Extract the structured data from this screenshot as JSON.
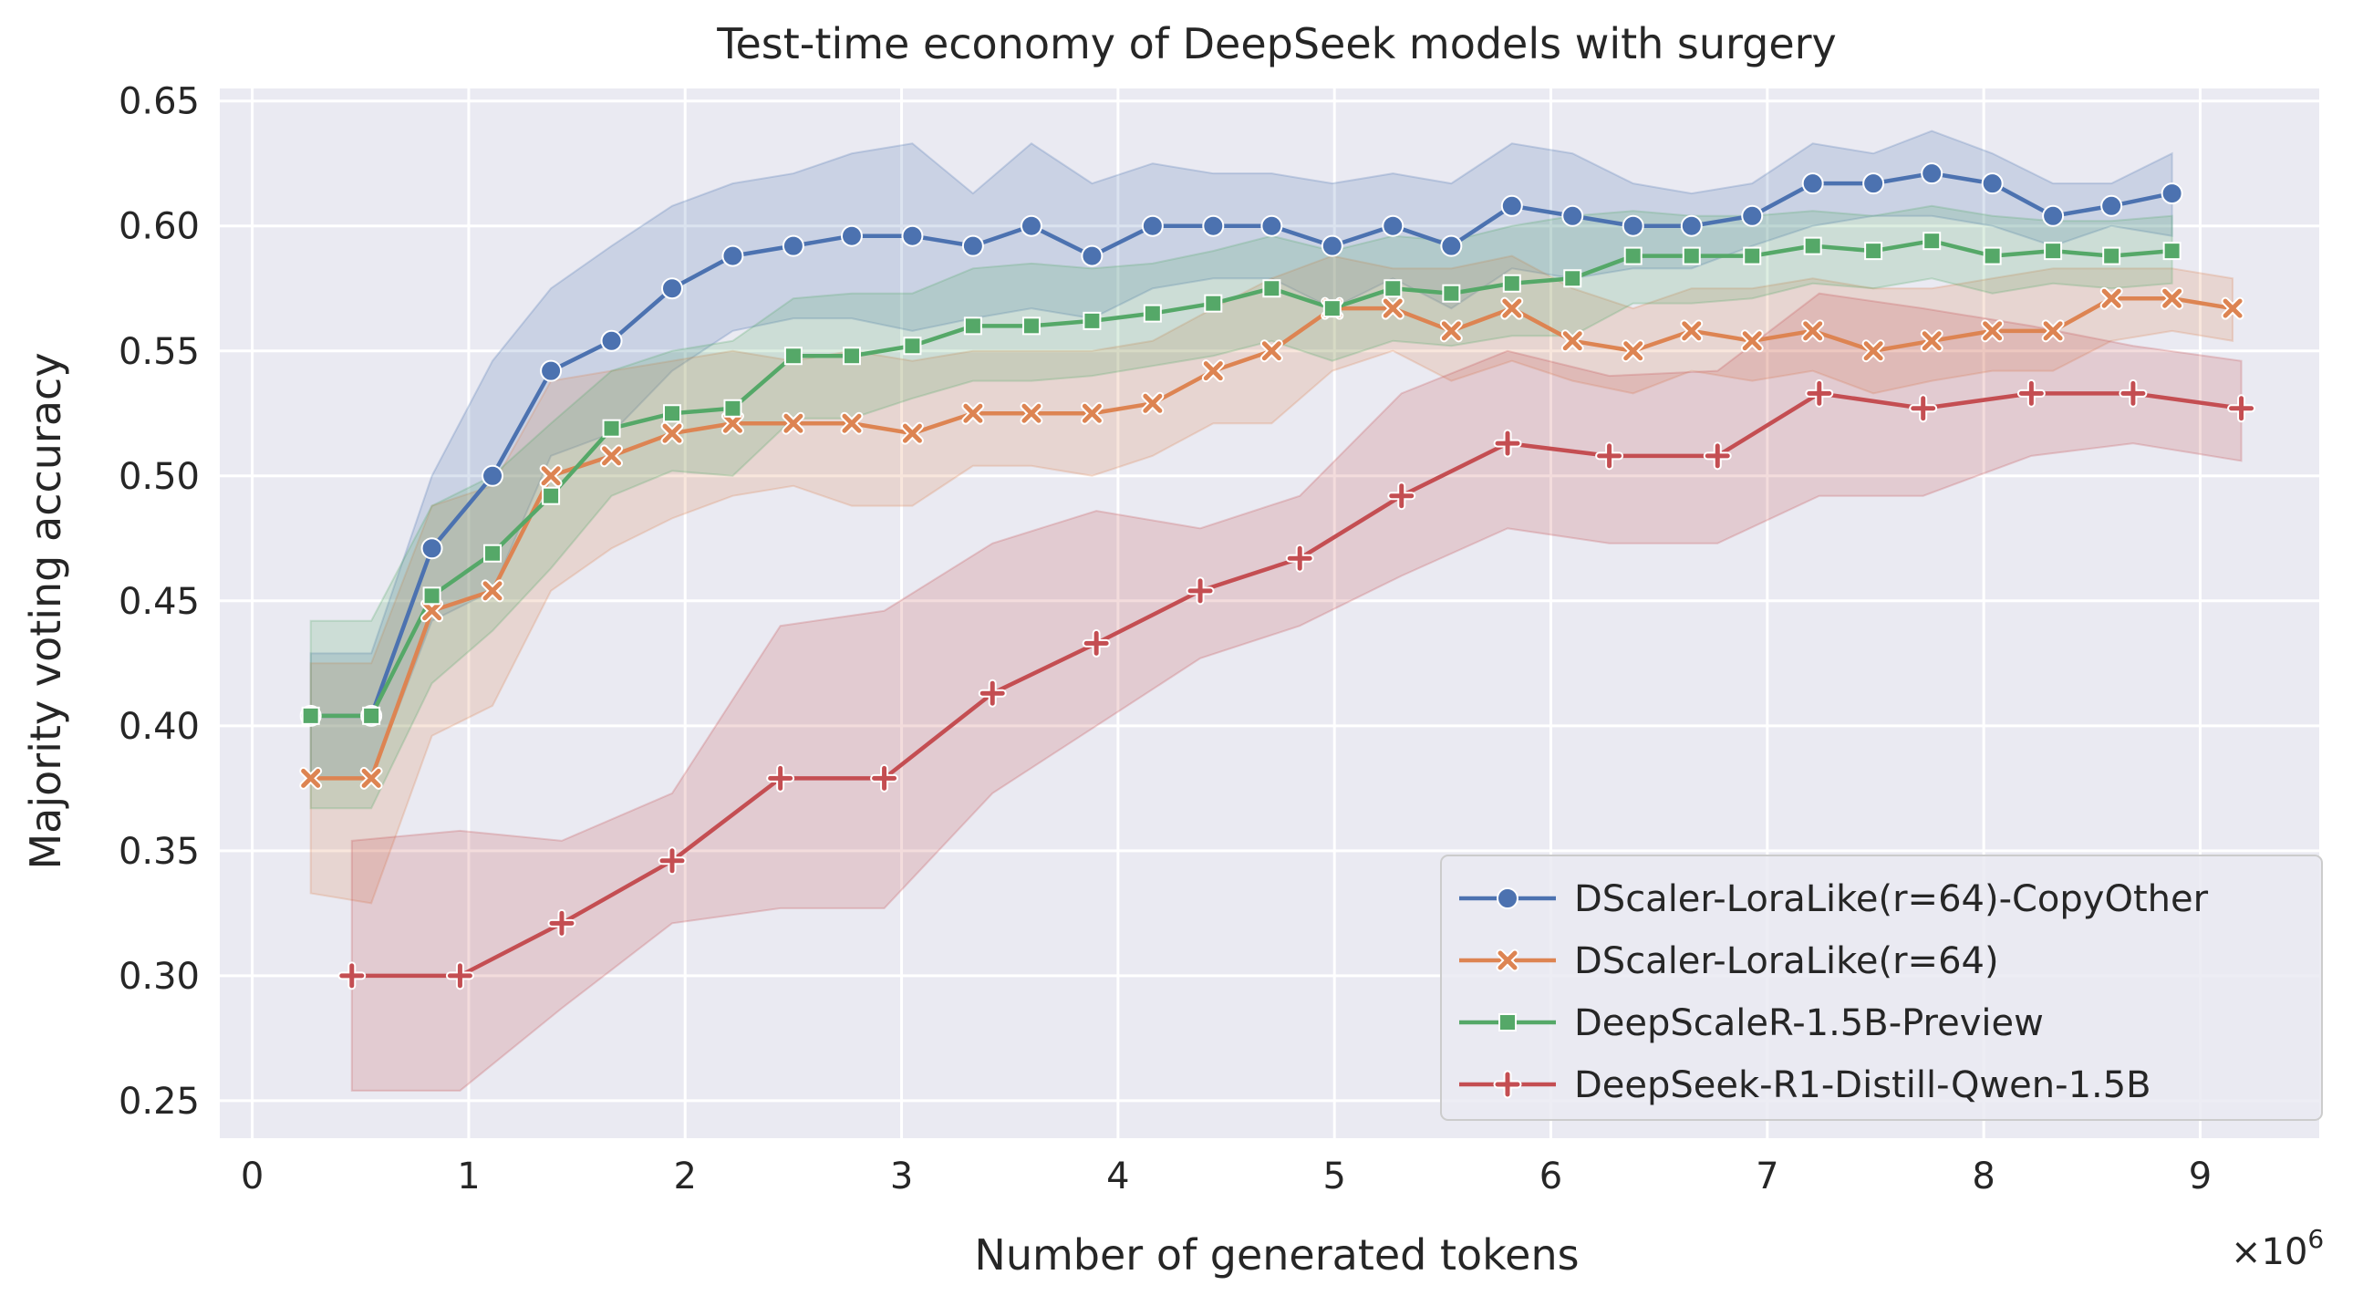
{
  "chart_data": {
    "type": "line",
    "title": "Test-time economy of DeepSeek models with surgery",
    "xlabel": "Number of generated tokens",
    "ylabel": "Majority voting accuracy",
    "x_offset_label": "×10",
    "x_offset_exp": "6",
    "xlim": [
      -0.15,
      9.55
    ],
    "ylim": [
      0.235,
      0.655
    ],
    "xticks": [
      0,
      1,
      2,
      3,
      4,
      5,
      6,
      7,
      8,
      9
    ],
    "xtick_labels": [
      "0",
      "1",
      "2",
      "3",
      "4",
      "5",
      "6",
      "7",
      "8",
      "9"
    ],
    "yticks": [
      0.25,
      0.3,
      0.35,
      0.4,
      0.45,
      0.5,
      0.55,
      0.6,
      0.65
    ],
    "ytick_labels": [
      "0.25",
      "0.30",
      "0.35",
      "0.40",
      "0.45",
      "0.50",
      "0.55",
      "0.60",
      "0.65"
    ],
    "grid": true,
    "background": "#eaeaf2",
    "legend_position": "lower-right",
    "series": [
      {
        "name": "DScaler-LoraLike(r=64)-CopyOther",
        "color": "#4c72b0",
        "marker": "circle",
        "x": [
          0.27,
          0.55,
          0.83,
          1.11,
          1.38,
          1.66,
          1.94,
          2.22,
          2.5,
          2.77,
          3.05,
          3.33,
          3.6,
          3.88,
          4.16,
          4.44,
          4.71,
          4.99,
          5.27,
          5.54,
          5.82,
          6.1,
          6.38,
          6.65,
          6.93,
          7.21,
          7.49,
          7.76,
          8.04,
          8.32,
          8.59,
          8.87
        ],
        "y": [
          0.404,
          0.404,
          0.471,
          0.5,
          0.542,
          0.554,
          0.575,
          0.588,
          0.592,
          0.596,
          0.596,
          0.592,
          0.6,
          0.588,
          0.6,
          0.6,
          0.6,
          0.592,
          0.6,
          0.592,
          0.608,
          0.604,
          0.6,
          0.6,
          0.604,
          0.617,
          0.617,
          0.621,
          0.617,
          0.604,
          0.608,
          0.613
        ],
        "upper": [
          0.429,
          0.429,
          0.5,
          0.546,
          0.575,
          0.592,
          0.608,
          0.617,
          0.621,
          0.629,
          0.633,
          0.613,
          0.633,
          0.617,
          0.625,
          0.621,
          0.621,
          0.617,
          0.621,
          0.617,
          0.633,
          0.629,
          0.617,
          0.613,
          0.617,
          0.633,
          0.629,
          0.638,
          0.629,
          0.617,
          0.617,
          0.629
        ],
        "lower": [
          0.379,
          0.379,
          0.442,
          0.454,
          0.508,
          0.517,
          0.542,
          0.558,
          0.563,
          0.563,
          0.558,
          0.563,
          0.567,
          0.563,
          0.575,
          0.579,
          0.579,
          0.567,
          0.579,
          0.567,
          0.583,
          0.579,
          0.583,
          0.583,
          0.592,
          0.6,
          0.604,
          0.604,
          0.6,
          0.592,
          0.6,
          0.596
        ]
      },
      {
        "name": "DScaler-LoraLike(r=64)",
        "color": "#dd8452",
        "marker": "x",
        "x": [
          0.27,
          0.55,
          0.83,
          1.11,
          1.38,
          1.66,
          1.94,
          2.22,
          2.5,
          2.77,
          3.05,
          3.33,
          3.6,
          3.88,
          4.16,
          4.44,
          4.71,
          4.99,
          5.27,
          5.54,
          5.82,
          6.1,
          6.38,
          6.65,
          6.93,
          7.21,
          7.49,
          7.76,
          8.04,
          8.32,
          8.59,
          8.87,
          9.15
        ],
        "y": [
          0.379,
          0.379,
          0.446,
          0.454,
          0.5,
          0.508,
          0.517,
          0.521,
          0.521,
          0.521,
          0.517,
          0.525,
          0.525,
          0.525,
          0.529,
          0.542,
          0.55,
          0.567,
          0.567,
          0.558,
          0.567,
          0.554,
          0.55,
          0.558,
          0.554,
          0.558,
          0.55,
          0.554,
          0.558,
          0.558,
          0.571,
          0.571,
          0.567
        ],
        "upper": [
          0.425,
          0.425,
          0.488,
          0.496,
          0.538,
          0.542,
          0.546,
          0.55,
          0.546,
          0.55,
          0.546,
          0.55,
          0.55,
          0.55,
          0.554,
          0.567,
          0.579,
          0.588,
          0.583,
          0.583,
          0.588,
          0.575,
          0.567,
          0.575,
          0.575,
          0.579,
          0.575,
          0.575,
          0.579,
          0.583,
          0.583,
          0.583,
          0.579
        ],
        "lower": [
          0.333,
          0.329,
          0.396,
          0.408,
          0.454,
          0.471,
          0.483,
          0.492,
          0.496,
          0.488,
          0.488,
          0.504,
          0.504,
          0.5,
          0.508,
          0.521,
          0.521,
          0.542,
          0.55,
          0.538,
          0.546,
          0.538,
          0.533,
          0.542,
          0.538,
          0.542,
          0.533,
          0.538,
          0.542,
          0.542,
          0.554,
          0.558,
          0.554
        ]
      },
      {
        "name": "DeepScaleR-1.5B-Preview",
        "color": "#55a868",
        "marker": "square",
        "x": [
          0.27,
          0.55,
          0.83,
          1.11,
          1.38,
          1.66,
          1.94,
          2.22,
          2.5,
          2.77,
          3.05,
          3.33,
          3.6,
          3.88,
          4.16,
          4.44,
          4.71,
          4.99,
          5.27,
          5.54,
          5.82,
          6.1,
          6.38,
          6.65,
          6.93,
          7.21,
          7.49,
          7.76,
          8.04,
          8.32,
          8.59,
          8.87
        ],
        "y": [
          0.404,
          0.404,
          0.452,
          0.469,
          0.492,
          0.519,
          0.525,
          0.527,
          0.548,
          0.548,
          0.552,
          0.56,
          0.56,
          0.562,
          0.565,
          0.569,
          0.575,
          0.567,
          0.575,
          0.573,
          0.577,
          0.579,
          0.588,
          0.588,
          0.588,
          0.592,
          0.59,
          0.594,
          0.588,
          0.59,
          0.588,
          0.59
        ],
        "upper": [
          0.442,
          0.442,
          0.488,
          0.5,
          0.521,
          0.542,
          0.55,
          0.554,
          0.571,
          0.573,
          0.573,
          0.583,
          0.585,
          0.583,
          0.585,
          0.59,
          0.596,
          0.59,
          0.596,
          0.594,
          0.6,
          0.604,
          0.606,
          0.604,
          0.604,
          0.606,
          0.604,
          0.608,
          0.604,
          0.602,
          0.602,
          0.604
        ],
        "lower": [
          0.367,
          0.367,
          0.417,
          0.438,
          0.463,
          0.492,
          0.502,
          0.5,
          0.523,
          0.523,
          0.531,
          0.538,
          0.538,
          0.54,
          0.544,
          0.548,
          0.554,
          0.546,
          0.554,
          0.552,
          0.556,
          0.556,
          0.569,
          0.569,
          0.571,
          0.577,
          0.575,
          0.579,
          0.573,
          0.577,
          0.575,
          0.577
        ]
      },
      {
        "name": "DeepSeek-R1-Distill-Qwen-1.5B",
        "color": "#c44e52",
        "marker": "plus",
        "x": [
          0.46,
          0.96,
          1.43,
          1.94,
          2.44,
          2.92,
          3.42,
          3.9,
          4.38,
          4.84,
          5.31,
          5.8,
          6.27,
          6.77,
          7.24,
          7.72,
          8.22,
          8.69,
          9.19
        ],
        "y": [
          0.3,
          0.3,
          0.321,
          0.346,
          0.379,
          0.379,
          0.413,
          0.433,
          0.454,
          0.467,
          0.492,
          0.513,
          0.508,
          0.508,
          0.533,
          0.527,
          0.533,
          0.533,
          0.527
        ],
        "upper": [
          0.354,
          0.358,
          0.354,
          0.373,
          0.44,
          0.446,
          0.473,
          0.486,
          0.479,
          0.492,
          0.533,
          0.55,
          0.54,
          0.542,
          0.573,
          0.567,
          0.56,
          0.552,
          0.546
        ],
        "lower": [
          0.254,
          0.254,
          0.287,
          0.321,
          0.327,
          0.327,
          0.373,
          0.4,
          0.427,
          0.44,
          0.46,
          0.479,
          0.473,
          0.473,
          0.492,
          0.492,
          0.508,
          0.513,
          0.506
        ]
      }
    ]
  }
}
